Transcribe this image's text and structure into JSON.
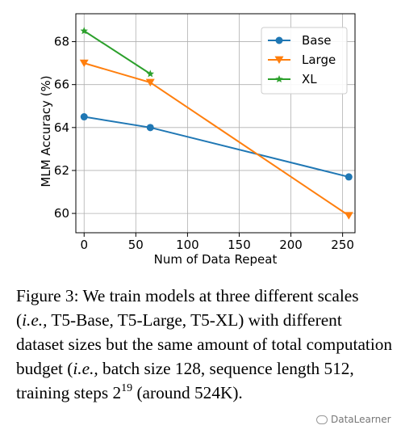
{
  "chart_data": {
    "type": "line",
    "xlabel": "Num of Data Repeat",
    "ylabel": "MLM Accuracy (%)",
    "xlim": [
      -8,
      262
    ],
    "ylim": [
      59.1,
      69.3
    ],
    "xticks": [
      0,
      50,
      100,
      150,
      200,
      250
    ],
    "yticks": [
      60,
      62,
      64,
      66,
      68
    ],
    "grid": true,
    "legend_position": "top-right",
    "series": [
      {
        "name": "Base",
        "color": "#1f77b4",
        "marker": "circle",
        "x": [
          0,
          64,
          256
        ],
        "y": [
          64.5,
          64.0,
          61.7
        ]
      },
      {
        "name": "Large",
        "color": "#ff7f0e",
        "marker": "triangle-down",
        "x": [
          0,
          64,
          256
        ],
        "y": [
          67.0,
          66.1,
          59.9
        ]
      },
      {
        "name": "XL",
        "color": "#2ca02c",
        "marker": "star",
        "x": [
          0,
          64
        ],
        "y": [
          68.5,
          66.5
        ]
      }
    ]
  },
  "caption": {
    "label": "Figure 3:",
    "text_1": " We train models at three different scales (",
    "ie_1": "i.e.,",
    "text_2": " T5-Base, T5-Large, T5-XL) with different dataset sizes but the same amount of total computation budget (",
    "ie_2": "i.e.,",
    "text_3": " batch size 128, sequence length 512, training steps 2",
    "exponent": "19",
    "text_4": " (around 524K)."
  },
  "watermark": {
    "text": "DataLearner",
    "icon": "wechat-icon"
  }
}
